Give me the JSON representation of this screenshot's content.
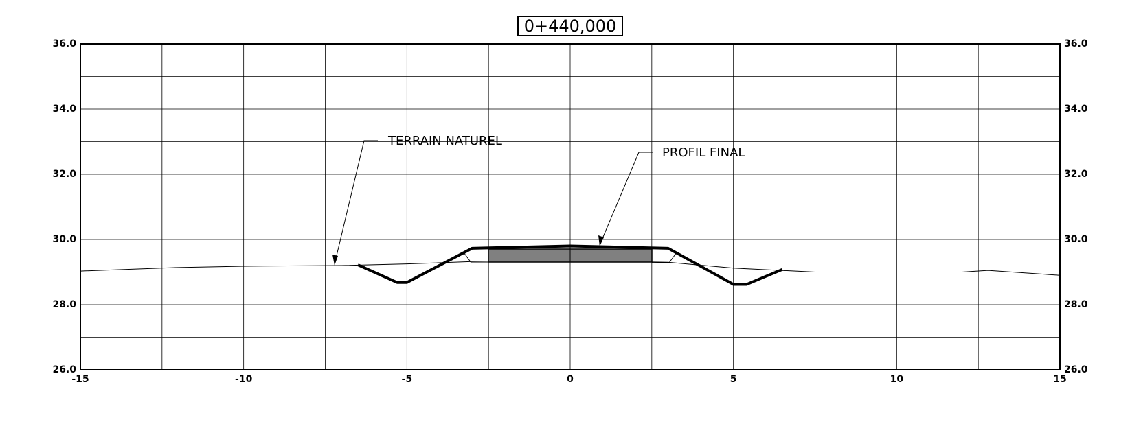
{
  "chart_data": {
    "type": "line",
    "title": "0+440,000",
    "xlim": [
      -15,
      15
    ],
    "ylim": [
      26,
      36
    ],
    "xticks": [
      -15,
      -10,
      -5,
      0,
      5,
      10,
      15
    ],
    "yticks": [
      {
        "value": 26,
        "label": "26.0"
      },
      {
        "value": 28,
        "label": "28.0"
      },
      {
        "value": 30,
        "label": "30.0"
      },
      {
        "value": 32,
        "label": "32.0"
      },
      {
        "value": 34,
        "label": "34.0"
      },
      {
        "value": 36,
        "label": "36.0"
      }
    ],
    "xgrid": [
      -12.5,
      -7.5,
      -2.5,
      2.5,
      7.5,
      12.5
    ],
    "ygrid": [
      27,
      29,
      31,
      33,
      35
    ],
    "grid": true,
    "series": [
      {
        "name": "TERRAIN NATUREL",
        "color": "#000000",
        "x": [
          -15,
          -12,
          -10,
          -7,
          -5,
          -3,
          0,
          3,
          5,
          7.5,
          10,
          12,
          12.8,
          15
        ],
        "values": [
          29.03,
          29.14,
          29.18,
          29.2,
          29.25,
          29.32,
          29.35,
          29.3,
          29.12,
          29.0,
          29.0,
          29.0,
          29.05,
          28.9
        ]
      },
      {
        "name": "PROFIL FINAL",
        "color": "#000000",
        "x": [
          -6.5,
          -5.3,
          -5.0,
          -3.0,
          0,
          3.0,
          5.0,
          5.4,
          6.5
        ],
        "values": [
          29.22,
          28.68,
          28.68,
          29.73,
          29.8,
          29.73,
          28.62,
          28.62,
          29.08
        ]
      }
    ]
  }
}
